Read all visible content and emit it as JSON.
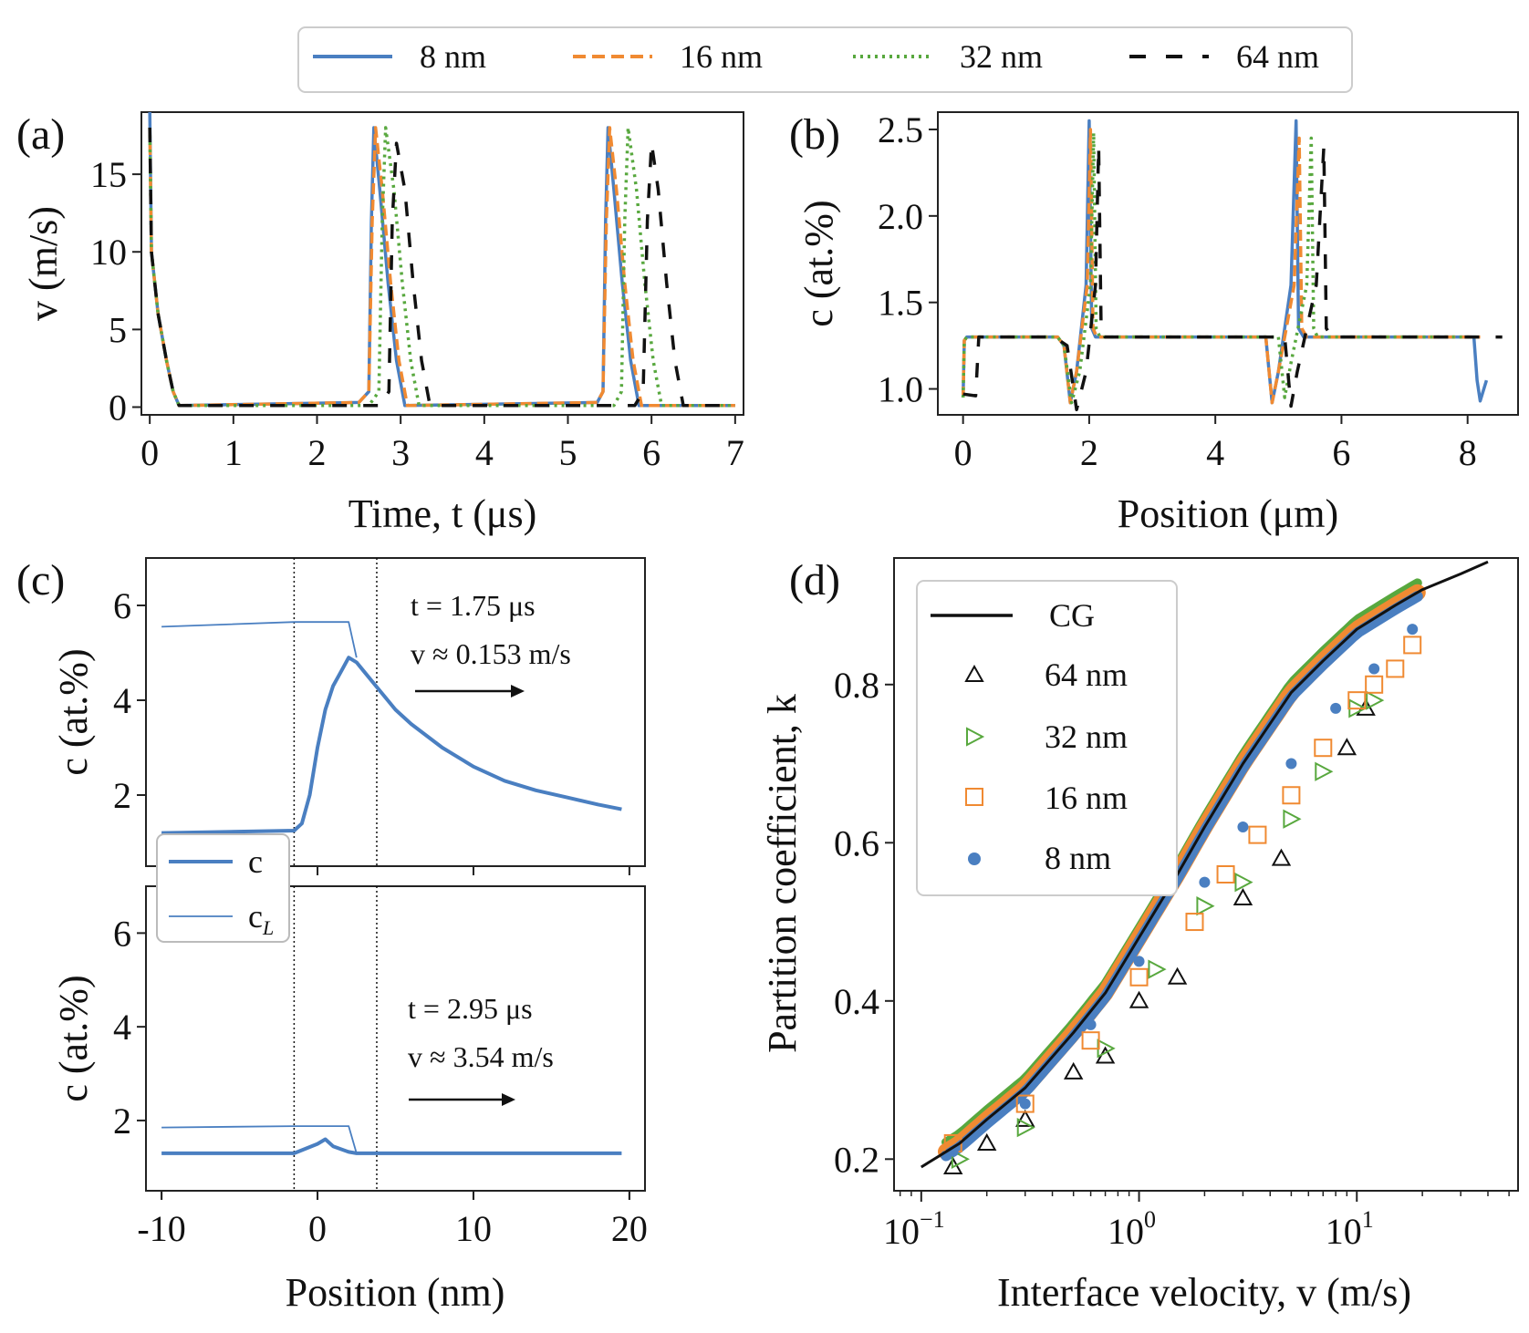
{
  "colors": {
    "8nm": "#4a7fc1",
    "16nm": "#f08a32",
    "32nm": "#58a83e",
    "64nm": "#111111"
  },
  "legend_top": [
    "8 nm",
    "16 nm",
    "32 nm",
    "64 nm"
  ],
  "chart_data": [
    {
      "type": "line",
      "panel_label": "(a)",
      "xlabel": "Time, t (μs)",
      "ylabel": "v (m/s)",
      "xlim": [
        -0.1,
        7.1
      ],
      "ylim": [
        -0.5,
        19
      ],
      "xticks": [
        "0",
        "1",
        "2",
        "3",
        "4",
        "5",
        "6",
        "7"
      ],
      "yticks": [
        "0",
        "5",
        "10",
        "15"
      ],
      "series": [
        {
          "name": "8 nm",
          "x": [
            0,
            0.02,
            0.1,
            0.2,
            0.28,
            0.35,
            2.5,
            2.62,
            2.65,
            2.68,
            2.75,
            2.85,
            2.95,
            3.05,
            5.35,
            5.42,
            5.45,
            5.48,
            5.55,
            5.65,
            5.75,
            5.85,
            7.0
          ],
          "y": [
            19,
            10,
            6,
            3,
            1,
            0.1,
            0.3,
            1,
            12,
            18,
            14,
            8,
            3,
            0.1,
            0.3,
            1,
            12,
            18,
            14,
            8,
            3,
            0.1,
            0.1
          ]
        },
        {
          "name": "16 nm",
          "x": [
            0,
            0.02,
            0.1,
            0.2,
            0.28,
            0.35,
            2.5,
            2.62,
            2.66,
            2.7,
            2.78,
            2.88,
            2.98,
            3.08,
            5.35,
            5.42,
            5.46,
            5.5,
            5.58,
            5.68,
            5.78,
            5.88,
            7.0
          ],
          "y": [
            18,
            10,
            6,
            3,
            1,
            0.1,
            0.3,
            1,
            12,
            18,
            14,
            8,
            3,
            0.1,
            0.3,
            1,
            12,
            18,
            14,
            8,
            3,
            0.1,
            0.1
          ]
        },
        {
          "name": "32 nm",
          "x": [
            0,
            0.02,
            0.1,
            0.2,
            0.28,
            0.35,
            2.62,
            2.74,
            2.78,
            2.82,
            2.92,
            3.02,
            3.12,
            3.22,
            5.55,
            5.64,
            5.68,
            5.72,
            5.82,
            5.92,
            6.02,
            6.12,
            7.0
          ],
          "y": [
            18,
            10,
            6,
            3,
            1,
            0.1,
            0.1,
            1,
            12,
            18,
            14,
            8,
            3,
            0.1,
            0.1,
            1,
            12,
            18,
            14,
            8,
            3,
            0.1,
            0.1
          ]
        },
        {
          "name": "64 nm",
          "x": [
            0,
            0.02,
            0.1,
            0.2,
            0.28,
            0.35,
            2.75,
            2.86,
            2.9,
            2.95,
            3.05,
            3.15,
            3.25,
            3.35,
            5.8,
            5.9,
            5.95,
            6.0,
            6.08,
            6.18,
            6.28,
            6.38,
            7.0
          ],
          "y": [
            18,
            10,
            6,
            3,
            1,
            0.1,
            0.1,
            1,
            12,
            17,
            14,
            8,
            3,
            0.1,
            0.1,
            1,
            12,
            17,
            14,
            8,
            3,
            0.1,
            0.1
          ]
        }
      ]
    },
    {
      "type": "line",
      "panel_label": "(b)",
      "xlabel": "Position (μm)",
      "ylabel": "c (at.%)",
      "xlim": [
        -0.4,
        8.8
      ],
      "ylim": [
        0.85,
        2.6
      ],
      "xticks": [
        "0",
        "2",
        "4",
        "6",
        "8"
      ],
      "yticks": [
        "1.0",
        "1.5",
        "2.0",
        "2.5"
      ],
      "series": [
        {
          "name": "8 nm",
          "x": [
            0,
            0.02,
            0.06,
            1.5,
            1.6,
            1.7,
            1.8,
            1.95,
            2.0,
            2.04,
            2.1,
            4.8,
            4.9,
            5.0,
            5.2,
            5.28,
            5.32,
            5.4,
            8.1,
            8.15,
            8.2,
            8.3
          ],
          "y": [
            0.95,
            1.28,
            1.3,
            1.3,
            1.25,
            0.92,
            1.1,
            1.6,
            2.55,
            1.35,
            1.3,
            1.3,
            0.92,
            1.1,
            1.6,
            2.55,
            1.35,
            1.3,
            1.3,
            1.05,
            0.93,
            1.05
          ]
        },
        {
          "name": "16 nm",
          "x": [
            0,
            0.02,
            0.06,
            1.5,
            1.6,
            1.7,
            1.8,
            1.97,
            2.02,
            2.06,
            2.12,
            4.8,
            4.9,
            5.0,
            5.25,
            5.33,
            5.37,
            5.45,
            8.1,
            8.2
          ],
          "y": [
            0.95,
            1.28,
            1.3,
            1.3,
            1.25,
            0.92,
            1.1,
            1.6,
            2.5,
            1.35,
            1.3,
            1.3,
            0.92,
            1.1,
            1.6,
            2.45,
            1.35,
            1.3,
            1.3,
            1.3
          ]
        },
        {
          "name": "32 nm",
          "x": [
            0,
            0.02,
            0.06,
            1.5,
            1.6,
            1.72,
            1.85,
            2.02,
            2.07,
            2.11,
            2.17,
            5.0,
            5.1,
            5.2,
            5.45,
            5.52,
            5.56,
            5.62,
            8.2
          ],
          "y": [
            0.95,
            1.28,
            1.3,
            1.3,
            1.25,
            0.92,
            1.1,
            1.6,
            2.48,
            1.35,
            1.3,
            1.3,
            0.95,
            1.15,
            1.6,
            2.45,
            1.35,
            1.3,
            1.3
          ]
        },
        {
          "name": "64 nm",
          "x": [
            0,
            0.2,
            0.25,
            1.45,
            1.65,
            1.8,
            1.95,
            2.1,
            2.15,
            2.19,
            2.25,
            5.1,
            5.2,
            5.3,
            5.6,
            5.72,
            5.76,
            5.85,
            8.55
          ],
          "y": [
            0.97,
            0.96,
            1.3,
            1.3,
            1.25,
            0.88,
            1.1,
            1.6,
            2.4,
            1.35,
            1.3,
            1.3,
            0.9,
            1.1,
            1.6,
            2.4,
            1.35,
            1.3,
            1.3
          ]
        }
      ]
    },
    {
      "type": "line",
      "panel_label": "(c)",
      "subpanel": "top",
      "ylabel": "c (at.%)",
      "xlim": [
        -11,
        21
      ],
      "ylim": [
        0.5,
        7
      ],
      "yticks": [
        "2",
        "4",
        "6"
      ],
      "vlines": [
        -1.5,
        3.8
      ],
      "annotation": [
        "t = 1.75 μs",
        "v ≈ 0.153 m/s"
      ],
      "series": [
        {
          "name": "c",
          "x": [
            -10,
            -1.5,
            -1,
            -0.5,
            0,
            0.5,
            1,
            1.5,
            2,
            2.5,
            3,
            4,
            5,
            6,
            8,
            10,
            12,
            14,
            16,
            18,
            19.5
          ],
          "y": [
            1.2,
            1.25,
            1.4,
            2.0,
            3.0,
            3.8,
            4.3,
            4.6,
            4.9,
            4.8,
            4.6,
            4.2,
            3.8,
            3.5,
            3.0,
            2.6,
            2.3,
            2.1,
            1.95,
            1.8,
            1.7
          ]
        },
        {
          "name": "c_L",
          "x": [
            -10,
            -1.5,
            2,
            2.5
          ],
          "y": [
            5.55,
            5.65,
            5.65,
            4.9
          ]
        }
      ],
      "legend": [
        "c",
        "c_L"
      ]
    },
    {
      "type": "line",
      "panel_label": "(c)",
      "subpanel": "bottom",
      "xlabel": "Position (nm)",
      "ylabel": "c (at.%)",
      "xlim": [
        -11,
        21
      ],
      "ylim": [
        0.5,
        7
      ],
      "xticks": [
        "-10",
        "0",
        "10",
        "20"
      ],
      "yticks": [
        "2",
        "4",
        "6"
      ],
      "vlines": [
        -1.5,
        3.8
      ],
      "annotation": [
        "t = 2.95 μs",
        "v ≈ 3.54 m/s"
      ],
      "series": [
        {
          "name": "c",
          "x": [
            -10,
            -1.5,
            0,
            0.5,
            1,
            2,
            2.5,
            3,
            19.5
          ],
          "y": [
            1.3,
            1.3,
            1.5,
            1.6,
            1.45,
            1.33,
            1.3,
            1.3,
            1.3
          ]
        },
        {
          "name": "c_L",
          "x": [
            -10,
            -1.5,
            2,
            2.5
          ],
          "y": [
            1.85,
            1.88,
            1.88,
            1.3
          ]
        }
      ]
    },
    {
      "type": "scatter",
      "panel_label": "(d)",
      "xlabel": "Interface velocity, v (m/s)",
      "ylabel": "Partition coefficient, k",
      "xscale": "log",
      "xlim": [
        0.075,
        55
      ],
      "ylim": [
        0.16,
        0.96
      ],
      "xticks": [
        "10−1",
        "100",
        "101"
      ],
      "yticks": [
        "0.2",
        "0.4",
        "0.6",
        "0.8"
      ],
      "legend": [
        "CG",
        "64 nm",
        "32 nm",
        "16 nm",
        "8 nm"
      ],
      "cg_curve": {
        "x": [
          0.1,
          0.15,
          0.2,
          0.3,
          0.5,
          0.7,
          1,
          1.5,
          2,
          3,
          5,
          7,
          10,
          15,
          20,
          30,
          40
        ],
        "y": [
          0.19,
          0.22,
          0.25,
          0.29,
          0.36,
          0.41,
          0.48,
          0.56,
          0.62,
          0.7,
          0.79,
          0.83,
          0.87,
          0.9,
          0.92,
          0.94,
          0.955
        ]
      },
      "series": [
        {
          "name": "64 nm",
          "marker": "triangle-up",
          "x": [
            0.14,
            0.2,
            0.3,
            0.5,
            0.7,
            1,
            1.5,
            3,
            4.5,
            9,
            11
          ],
          "y": [
            0.19,
            0.22,
            0.25,
            0.31,
            0.33,
            0.4,
            0.43,
            0.53,
            0.58,
            0.72,
            0.77
          ]
        },
        {
          "name": "32 nm",
          "marker": "triangle-right",
          "x": [
            0.15,
            0.3,
            0.7,
            1.2,
            2,
            3,
            5,
            7,
            10,
            12
          ],
          "y": [
            0.2,
            0.24,
            0.34,
            0.44,
            0.52,
            0.55,
            0.63,
            0.69,
            0.77,
            0.78
          ]
        },
        {
          "name": "16 nm",
          "marker": "square",
          "x": [
            0.14,
            0.3,
            0.6,
            1,
            1.8,
            2.5,
            3.5,
            5,
            7,
            10,
            12,
            15,
            18
          ],
          "y": [
            0.22,
            0.27,
            0.35,
            0.43,
            0.5,
            0.56,
            0.61,
            0.66,
            0.72,
            0.78,
            0.8,
            0.82,
            0.85
          ]
        },
        {
          "name": "8 nm",
          "marker": "circle",
          "x": [
            0.14,
            0.3,
            0.6,
            1,
            2,
            3,
            5,
            8,
            12,
            18
          ],
          "y": [
            0.21,
            0.27,
            0.37,
            0.45,
            0.55,
            0.62,
            0.7,
            0.77,
            0.82,
            0.87
          ]
        }
      ]
    }
  ]
}
